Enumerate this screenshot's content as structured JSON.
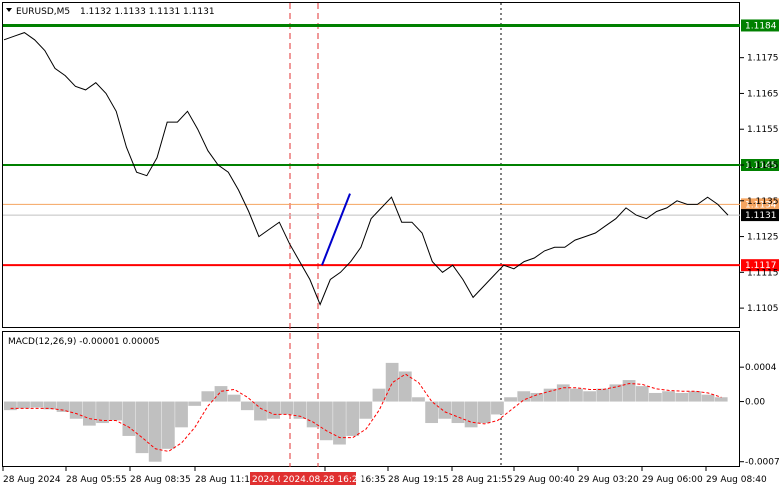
{
  "header": {
    "symbol": "EURUSD,M5",
    "ohlc": "1.1132 1.1133 1.1131 1.1131",
    "macd_label": "MACD(12,26,9) -0.00001 0.00005"
  },
  "colors": {
    "price_line": "#000000",
    "resistance_dark": "#008000",
    "resistance": "#008000",
    "support": "#ff0000",
    "current_orange": "#f4a460",
    "bid": "#c0c0c0",
    "pattern": "#0000cc",
    "vline_red": "#e03030",
    "vline_dark": "#000000",
    "macd_hist": "#c0c0c0",
    "macd_signal": "#ff0000"
  },
  "chart_data": [
    {
      "type": "line",
      "title": "EURUSD,M5",
      "ylim": [
        1.11,
        1.119
      ],
      "y_ticks": [
        1.1105,
        1.1115,
        1.1125,
        1.1135,
        1.1145,
        1.1155,
        1.1165,
        1.1175
      ],
      "x_tick_labels": [
        "28 Aug 2024",
        "28 Aug 05:55",
        "28 Aug 08:35",
        "28 Aug 11:15",
        "28 Aug 16:35",
        "28 Aug 19:15",
        "28 Aug 21:55",
        "29 Aug 00:40",
        "29 Aug 03:20",
        "29 Aug 06:00",
        "29 Aug 08:40"
      ],
      "x_highlight_labels": [
        "2024.0",
        "2024.08.28 16:20"
      ],
      "series": [
        {
          "values": [
            1.118,
            1.1181,
            1.1182,
            1.118,
            1.1177,
            1.1172,
            1.117,
            1.1167,
            1.1166,
            1.1168,
            1.1165,
            1.116,
            1.115,
            1.1143,
            1.1142,
            1.1147,
            1.1157,
            1.1157,
            1.116,
            1.1155,
            1.1149,
            1.1145,
            1.1143,
            1.1138,
            1.1132,
            1.1125,
            1.1127,
            1.1129,
            1.1123,
            1.1118,
            1.1113,
            1.1106,
            1.1113,
            1.1115,
            1.1118,
            1.1122,
            1.113,
            1.1133,
            1.1136,
            1.1129,
            1.1129,
            1.1126,
            1.1118,
            1.1115,
            1.1117,
            1.1113,
            1.1108,
            1.1111,
            1.1114,
            1.1117,
            1.1116,
            1.1118,
            1.1119,
            1.1121,
            1.1122,
            1.1122,
            1.1124,
            1.1125,
            1.1126,
            1.1128,
            1.113,
            1.1133,
            1.1131,
            1.113,
            1.1132,
            1.1133,
            1.1135,
            1.1134,
            1.1134,
            1.1136,
            1.1134,
            1.1131
          ]
        }
      ],
      "levels": [
        {
          "value": 1.1184,
          "label": "1.1184",
          "style": "resistance_dark"
        },
        {
          "value": 1.1145,
          "label": "1.1145",
          "style": "resistance"
        },
        {
          "value": 1.1134,
          "label": "1.1134",
          "style": "current_orange"
        },
        {
          "value": 1.1131,
          "label": "1.1131",
          "style": "bid"
        },
        {
          "value": 1.1117,
          "label": "1.1117",
          "style": "support"
        }
      ],
      "pattern_segment": {
        "from": 1.1117,
        "to": 1.1137
      }
    },
    {
      "type": "bar",
      "title": "MACD(12,26,9)",
      "ylim": [
        -0.00075,
        0.0006
      ],
      "y_ticks": [
        "0.0004",
        "0.00",
        "-0.0007"
      ],
      "series": [
        {
          "name": "MACD",
          "values": [
            -0.0001,
            -8e-05,
            -7e-05,
            -9e-05,
            -0.00012,
            -0.0002,
            -0.00028,
            -0.00025,
            -0.00022,
            -0.0004,
            -0.0006,
            -0.0007,
            -0.00055,
            -0.0003,
            -5e-05,
            0.00012,
            0.00018,
            8e-05,
            -0.0001,
            -0.00022,
            -0.0002,
            -0.00015,
            -0.0002,
            -0.0003,
            -0.00045,
            -0.0005,
            -0.0004,
            -0.0002,
            0.00015,
            0.00045,
            0.00035,
            5e-05,
            -0.00025,
            -0.0002,
            -0.00025,
            -0.0003,
            -0.00025,
            -0.00015,
            5e-05,
            0.00012,
            0.0001,
            0.00015,
            0.0002,
            0.00015,
            0.00012,
            0.00015,
            0.0002,
            0.00025,
            0.00018,
            0.0001,
            0.00012,
            0.0001,
            0.00012,
            8e-05,
            5e-05
          ]
        },
        {
          "name": "Signal",
          "values": [
            -8e-05,
            -8e-05,
            -8e-05,
            -8e-05,
            -0.0001,
            -0.00014,
            -0.0002,
            -0.00022,
            -0.00022,
            -0.0003,
            -0.00042,
            -0.00055,
            -0.00058,
            -0.00048,
            -0.0003,
            -5e-05,
            0.00012,
            0.00014,
            5e-05,
            -8e-05,
            -0.00015,
            -0.00015,
            -0.00017,
            -0.00024,
            -0.00034,
            -0.00042,
            -0.00042,
            -0.00032,
            -0.0001,
            0.00022,
            0.00032,
            0.00022,
            0.0,
            -0.00012,
            -0.00018,
            -0.00024,
            -0.00026,
            -0.00022,
            -0.0001,
            2e-05,
            8e-05,
            0.00012,
            0.00016,
            0.00016,
            0.00014,
            0.00014,
            0.00017,
            0.00021,
            0.0002,
            0.00015,
            0.00013,
            0.00012,
            0.00012,
            0.0001,
            5e-05
          ]
        }
      ]
    }
  ]
}
